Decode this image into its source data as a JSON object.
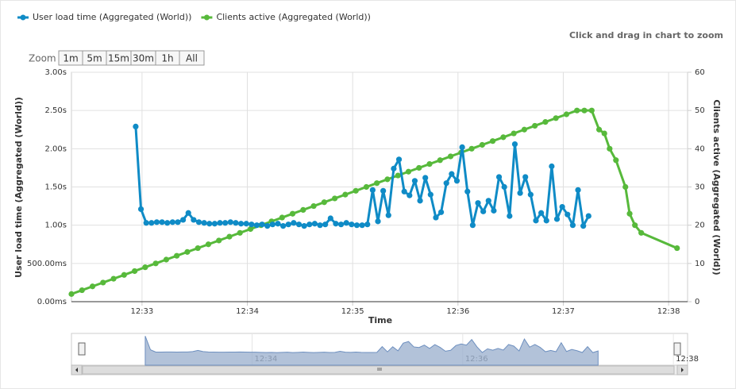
{
  "chart_data": {
    "type": "line",
    "hint": "Click and drag in chart to zoom",
    "zoom_label": "Zoom",
    "zoom_buttons": [
      "1m",
      "5m",
      "15m",
      "30m",
      "1h",
      "All"
    ],
    "x_label": "Time",
    "y_label": "User load time (Aggregated (World))",
    "y2_label": "Clients active (Aggregated (World))",
    "xlim": [
      752.33,
      758.18
    ],
    "xticks": [
      {
        "value": 753,
        "label": "12:33"
      },
      {
        "value": 754,
        "label": "12:34"
      },
      {
        "value": 755,
        "label": "12:35"
      },
      {
        "value": 756,
        "label": "12:36"
      },
      {
        "value": 757,
        "label": "12:37"
      },
      {
        "value": 758,
        "label": "12:38"
      }
    ],
    "ylim": [
      0,
      3
    ],
    "yticks": [
      {
        "value": 0,
        "label": "0.00ms"
      },
      {
        "value": 0.5,
        "label": "500.00ms"
      },
      {
        "value": 1,
        "label": "1.00s"
      },
      {
        "value": 1.5,
        "label": "1.50s"
      },
      {
        "value": 2,
        "label": "2.00s"
      },
      {
        "value": 2.5,
        "label": "2.50s"
      },
      {
        "value": 3,
        "label": "3.00s"
      }
    ],
    "y2lim": [
      0,
      60
    ],
    "y2ticks": [
      0,
      10,
      20,
      30,
      40,
      50,
      60
    ],
    "grid": true,
    "navigator_xticks": [
      {
        "value": 754,
        "label": "12:34"
      },
      {
        "value": 756,
        "label": "12:36"
      },
      {
        "value": 758,
        "label": "12:38"
      }
    ],
    "series": [
      {
        "name": "User load time (Aggregated (World))",
        "color": "#0f8bc6",
        "x": [
          752.94,
          752.99,
          753.04,
          753.09,
          753.14,
          753.19,
          753.24,
          753.29,
          753.34,
          753.39,
          753.44,
          753.49,
          753.54,
          753.59,
          753.64,
          753.69,
          753.74,
          753.79,
          753.84,
          753.89,
          753.94,
          753.99,
          754.04,
          754.09,
          754.14,
          754.19,
          754.24,
          754.29,
          754.34,
          754.39,
          754.44,
          754.49,
          754.54,
          754.59,
          754.64,
          754.69,
          754.74,
          754.79,
          754.84,
          754.89,
          754.94,
          754.99,
          755.04,
          755.09,
          755.14,
          755.19,
          755.24,
          755.29,
          755.34,
          755.39,
          755.44,
          755.49,
          755.54,
          755.59,
          755.64,
          755.69,
          755.74,
          755.79,
          755.84,
          755.89,
          755.94,
          755.99,
          756.04,
          756.09,
          756.14,
          756.19,
          756.24,
          756.29,
          756.34,
          756.39,
          756.44,
          756.49,
          756.54,
          756.59,
          756.64,
          756.69,
          756.74,
          756.79,
          756.84,
          756.89,
          756.94,
          756.99,
          757.04,
          757.09,
          757.14,
          757.19,
          757.24
        ],
        "values": [
          2.29,
          1.21,
          1.03,
          1.03,
          1.04,
          1.04,
          1.03,
          1.04,
          1.04,
          1.07,
          1.16,
          1.07,
          1.04,
          1.03,
          1.02,
          1.02,
          1.03,
          1.03,
          1.04,
          1.03,
          1.02,
          1.02,
          1.01,
          1.0,
          1.01,
          0.99,
          1.01,
          1.02,
          0.99,
          1.01,
          1.03,
          1.01,
          0.99,
          1.01,
          1.02,
          1.0,
          1.01,
          1.09,
          1.02,
          1.01,
          1.03,
          1.01,
          1.0,
          1.0,
          1.01,
          1.46,
          1.05,
          1.45,
          1.13,
          1.74,
          1.86,
          1.44,
          1.39,
          1.58,
          1.32,
          1.62,
          1.4,
          1.1,
          1.17,
          1.55,
          1.67,
          1.58,
          2.02,
          1.44,
          1.0,
          1.29,
          1.18,
          1.32,
          1.19,
          1.63,
          1.5,
          1.12,
          2.06,
          1.42,
          1.63,
          1.4,
          1.06,
          1.16,
          1.06,
          1.77,
          1.08,
          1.24,
          1.14,
          1.0,
          1.46,
          0.99,
          1.12
        ]
      },
      {
        "name": "Clients active (Aggregated (World))",
        "color": "#57b93b",
        "axis": "y2",
        "x": [
          752.33,
          752.43,
          752.53,
          752.63,
          752.73,
          752.83,
          752.93,
          753.03,
          753.13,
          753.23,
          753.33,
          753.43,
          753.53,
          753.63,
          753.73,
          753.83,
          753.93,
          754.03,
          754.13,
          754.23,
          754.33,
          754.43,
          754.53,
          754.63,
          754.73,
          754.83,
          754.93,
          755.03,
          755.13,
          755.23,
          755.33,
          755.43,
          755.53,
          755.63,
          755.73,
          755.83,
          755.93,
          756.03,
          756.13,
          756.23,
          756.33,
          756.43,
          756.53,
          756.63,
          756.73,
          756.83,
          756.93,
          757.03,
          757.13,
          757.2,
          757.27,
          757.34,
          757.39,
          757.44,
          757.5,
          757.59,
          757.63,
          757.68,
          757.74,
          758.08
        ],
        "values": [
          2,
          3,
          4,
          5,
          6,
          7,
          8,
          9,
          10,
          11,
          12,
          13,
          14,
          15,
          16,
          17,
          18,
          19,
          20,
          21,
          22,
          23,
          24,
          25,
          26,
          27,
          28,
          29,
          30,
          31,
          32,
          33,
          34,
          35,
          36,
          37,
          38,
          39,
          40,
          41,
          42,
          43,
          44,
          45,
          46,
          47,
          48,
          49,
          50,
          50,
          50,
          45,
          44,
          40,
          37,
          30,
          23,
          20,
          18,
          14
        ]
      }
    ]
  }
}
